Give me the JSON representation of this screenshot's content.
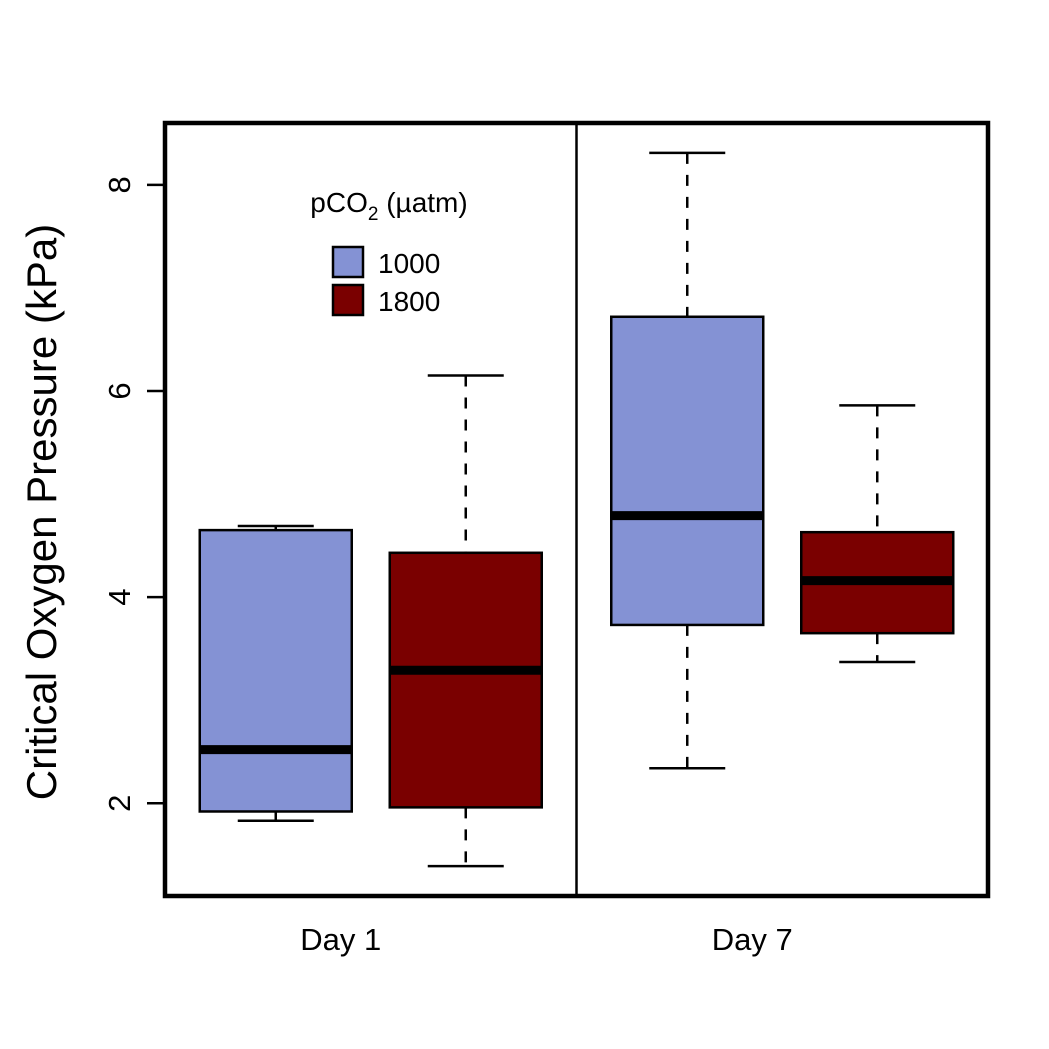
{
  "chart_data": {
    "type": "box",
    "title": "",
    "ylabel": "Critical Oxygen Pressure (kPa)",
    "xlabel": "",
    "ylim": [
      1.1,
      8.6
    ],
    "yticks": [
      2,
      4,
      6,
      8
    ],
    "grid": false,
    "categories": [
      "Day 1",
      "Day 7"
    ],
    "legend": {
      "title_prefix": "pCO",
      "title_sub": "2",
      "title_suffix": " (µatm)",
      "placement": "top-left",
      "entries": [
        {
          "label": "1000",
          "color": "#8492d4"
        },
        {
          "label": "1800",
          "color": "#7a0000"
        }
      ]
    },
    "series": [
      {
        "name": "1000",
        "color": "#8492d4",
        "boxes": [
          {
            "category": "Day 1",
            "whisker_low": 1.83,
            "q1": 1.92,
            "median": 2.52,
            "q3": 4.65,
            "whisker_high": 4.69
          },
          {
            "category": "Day 7",
            "whisker_low": 2.34,
            "q1": 3.73,
            "median": 4.79,
            "q3": 6.72,
            "whisker_high": 8.31
          }
        ]
      },
      {
        "name": "1800",
        "color": "#7a0000",
        "boxes": [
          {
            "category": "Day 1",
            "whisker_low": 1.39,
            "q1": 1.96,
            "median": 3.29,
            "q3": 4.43,
            "whisker_high": 6.15
          },
          {
            "category": "Day 7",
            "whisker_low": 3.37,
            "q1": 3.65,
            "median": 4.16,
            "q3": 4.63,
            "whisker_high": 5.86
          }
        ]
      }
    ]
  }
}
